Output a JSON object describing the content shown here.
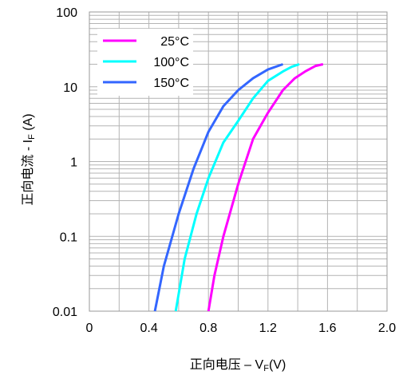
{
  "chart_data": {
    "type": "line",
    "xlabel": "正向电压 – V",
    "xlabel_sub": "F",
    "xlabel_suffix": "(V)",
    "ylabel": "正向电流 - I",
    "ylabel_sub": "F",
    "ylabel_suffix": " (A)",
    "xlim": [
      0,
      2.0
    ],
    "ylim": [
      0.01,
      100
    ],
    "yscale": "log",
    "grid": true,
    "legend_position": "top-left",
    "xticks": [
      "0",
      "0.4",
      "0.8",
      "1.2",
      "1.6",
      "2.0"
    ],
    "yticks": [
      "0.01",
      "0.1",
      "1",
      "10",
      "100"
    ],
    "series": [
      {
        "name": "25°C",
        "color": "#ff00ff",
        "points": [
          [
            0.8,
            0.01
          ],
          [
            0.84,
            0.03
          ],
          [
            0.9,
            0.1
          ],
          [
            1.0,
            0.5
          ],
          [
            1.1,
            2.0
          ],
          [
            1.2,
            4.5
          ],
          [
            1.3,
            9.0
          ],
          [
            1.38,
            13.0
          ],
          [
            1.45,
            16.0
          ],
          [
            1.52,
            19.0
          ],
          [
            1.57,
            20.0
          ]
        ]
      },
      {
        "name": "100°C",
        "color": "#00ffff",
        "points": [
          [
            0.58,
            0.01
          ],
          [
            0.64,
            0.05
          ],
          [
            0.72,
            0.2
          ],
          [
            0.8,
            0.6
          ],
          [
            0.9,
            1.8
          ],
          [
            1.0,
            3.5
          ],
          [
            1.1,
            7.0
          ],
          [
            1.2,
            12.0
          ],
          [
            1.3,
            16.0
          ],
          [
            1.36,
            18.5
          ],
          [
            1.41,
            20.0
          ]
        ]
      },
      {
        "name": "150°C",
        "color": "#3366ff",
        "points": [
          [
            0.44,
            0.01
          ],
          [
            0.5,
            0.04
          ],
          [
            0.6,
            0.2
          ],
          [
            0.7,
            0.8
          ],
          [
            0.8,
            2.5
          ],
          [
            0.9,
            5.5
          ],
          [
            1.0,
            9.0
          ],
          [
            1.1,
            13.0
          ],
          [
            1.2,
            17.0
          ],
          [
            1.3,
            20.0
          ]
        ]
      }
    ]
  }
}
